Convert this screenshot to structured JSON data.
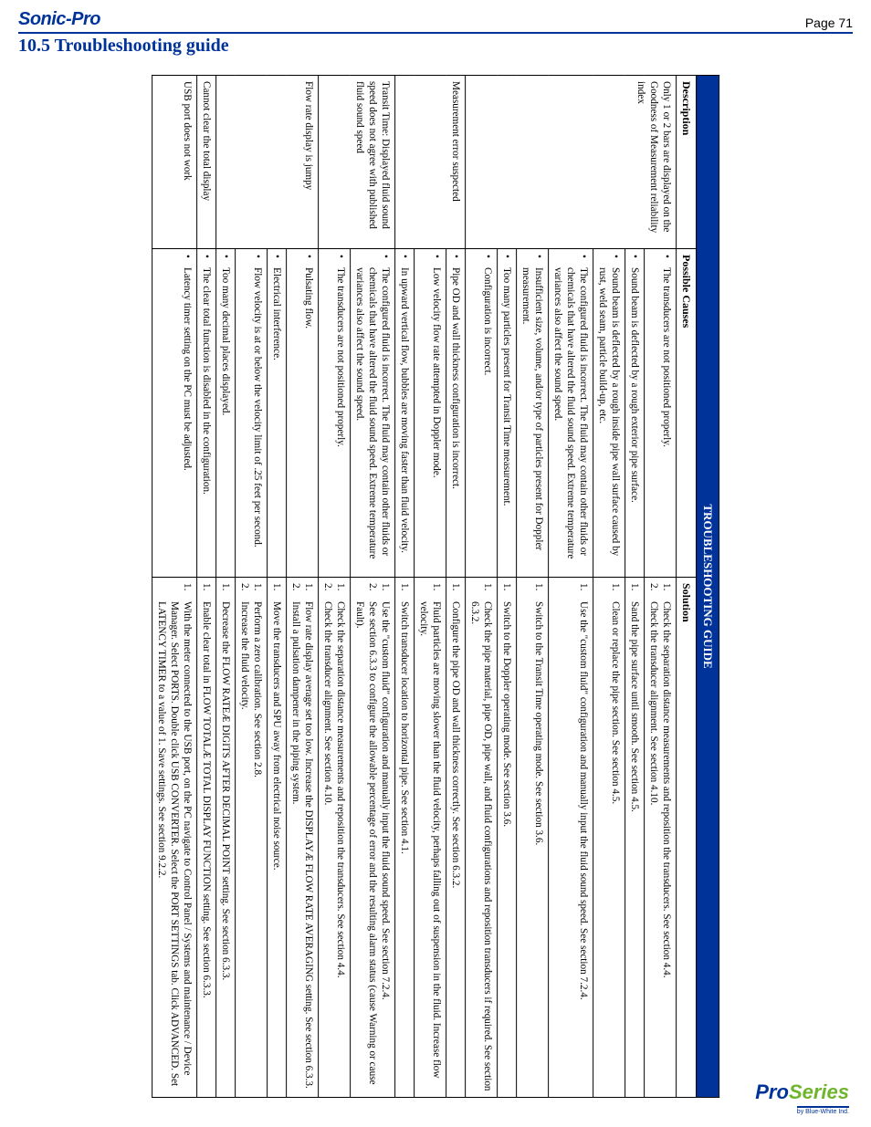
{
  "colors": {
    "brand_blue": "#003399",
    "accent_green": "#6fb52c",
    "text": "#000000",
    "page_bg": "#ffffff"
  },
  "header": {
    "brand": "Sonic-Pro",
    "page_label": "Page 71",
    "section": "10.5 Troubleshooting guide"
  },
  "footer": {
    "logo_main_1": "Pro",
    "logo_main_2": "Series",
    "logo_sub": "by Blue-White Ind."
  },
  "table": {
    "banner": "TROUBLESHOOTING GUIDE",
    "columns": [
      "Description",
      "Possible Causes",
      "Solution"
    ],
    "groups": [
      {
        "description": "Only 1 or 2 bars are displayed on the Goodness of Measurement reliability index",
        "rows": [
          {
            "cause": "The transducers are not positioned properly.",
            "solutions": [
              "Check the separation distance measurements and reposition the transducers. See section 4.4.",
              "Check the transducer alignment. See section 4.10."
            ]
          },
          {
            "cause": "Sound beam is deflected by a rough exterior pipe surface.",
            "solutions": [
              "Sand the pipe surface until smooth. See section 4.5."
            ]
          },
          {
            "cause": "Sound beam is deflected by a rough inside pipe wall surface caused by rust, weld seam, particle build-up, etc.",
            "solutions": [
              "Clean or replace the pipe section. See section 4.5."
            ]
          },
          {
            "cause": "The configured fluid is incorrect. The fluid may contain other fluids or chemicals that have altered the fluid sound speed. Extreme temperature variances also affect the sound speed.",
            "solutions": [
              "Use the \"custom fluid\" configuration and manually input the fluid sound speed. See section 7.2.4."
            ]
          },
          {
            "cause": "Insufficient size, volume, and/or type of particles present for Doppler measurement.",
            "solutions": [
              "Switch to the Transit Time operating mode. See section 3.6."
            ]
          },
          {
            "cause": "Too many particles present for Transit Time measurement.",
            "solutions": [
              "Switch to the Doppler operating mode. See section 3.6."
            ]
          },
          {
            "cause": "Configuration is incorrect.",
            "solutions": [
              "Check the pipe material, pipe OD, pipe wall, and fluid configurations and reposition transducers if required. See section 6.3.2."
            ]
          }
        ]
      },
      {
        "description": "Measurement error suspected",
        "rows": [
          {
            "cause": "Pipe OD and wall thickness configuration is incorrect.",
            "solutions": [
              "Configure the pipe OD and wall thickness correctly. See section 6.3.2."
            ]
          },
          {
            "cause": "Low velocity flow rate attempted in Doppler mode.",
            "solutions": [
              "Fluid particles are moving slower than the fluid velocity, perhaps falling out of suspension in the fluid. Increase flow velocity."
            ]
          },
          {
            "cause": "In upward vertical flow, bubbles are moving faster than fluid velocity.",
            "solutions": [
              "Switch transducer location to horizontal pipe. See section 4.1."
            ]
          }
        ]
      },
      {
        "description": "Transit Time: Displayed fluid sound speed does not agree with published fluid sound speed",
        "rows": [
          {
            "cause": "The configured fluid is incorrect. The fluid may contain other fluids or chemicals that have altered the fluid sound speed. Extreme temperature variances also affect the sound speed.",
            "solutions": [
              "Use the \"custom fluid\" configuration and manually input the fluid sound speed. See section 7.2.4.",
              "See section 6.3.3 to configure the allowable percentage of error and the resulting alarm status (cause Warning or cause Fault)."
            ]
          },
          {
            "cause": "The transducers are not positioned properly.",
            "solutions": [
              "Check the separation distance measurements and reposition the transducers. See section 4.4.",
              "Check the transducer alignment. See section 4.10."
            ]
          }
        ]
      },
      {
        "description": "Flow rate display is jumpy",
        "rows": [
          {
            "cause": "Pulsating flow.",
            "solutions": [
              "Flow rate display average set too low. Increase the DISPLAYÆ FLOW RATE AVERAGING setting. See section 6.3.3.",
              "Install a pulsation dampener in the piping system."
            ]
          },
          {
            "cause": "Electrical interference.",
            "solutions": [
              "Move the transducers and SPU away from electrical noise source."
            ]
          },
          {
            "cause": "Flow velocity is at or below the velocity limit of .25 feet per second.",
            "solutions": [
              "Perform a zero calibration. See section 2.8.",
              "Increase the fluid velocity."
            ]
          },
          {
            "cause": "Too many decimal places displayed.",
            "solutions": [
              "Decrease the FLOW RATEÆ DIGITS AFTER DECIMAL POINT setting. See section 6.3.3."
            ]
          }
        ]
      },
      {
        "description": "Cannot clear the total display",
        "rows": [
          {
            "cause": "The clear total function is disabled in the configuration.",
            "solutions": [
              "Enable clear total in FLOW TOTALÆ TOTAL DISPLAY FUNCTION setting. See section 6.3.3."
            ]
          }
        ]
      },
      {
        "description": "USB port does not work",
        "rows": [
          {
            "cause": "Latency timer setting on the PC must be adjusted.",
            "solutions": [
              "With the meter connected to the USB port, on the PC navigate to Control Panel / Systems and maintenance / Device Manager. Select PORTS. Double click USB CONVERTER. Select the PORT SETTINGS tab. Click ADVANCED. Set LATENCY TIMER to a value of 1. Save settings. See section 9.2.2."
            ]
          }
        ]
      }
    ]
  }
}
